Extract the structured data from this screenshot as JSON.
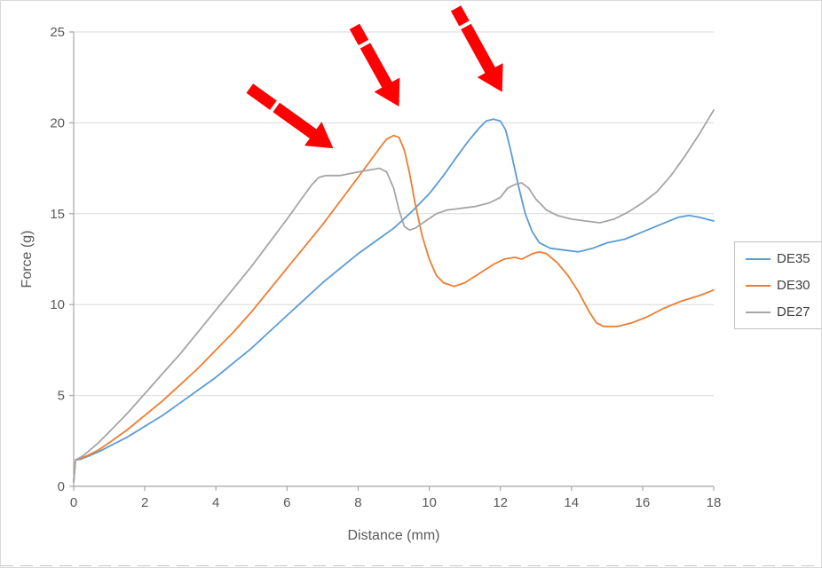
{
  "chart_data": {
    "type": "line",
    "title": "",
    "xlabel": "Distance (mm)",
    "ylabel": "Force (g)",
    "xlim": [
      0,
      18
    ],
    "ylim": [
      0,
      25
    ],
    "x_ticks": [
      0,
      2,
      4,
      6,
      8,
      10,
      12,
      14,
      16,
      18
    ],
    "y_ticks": [
      0,
      5,
      10,
      15,
      20,
      25
    ],
    "grid": "horizontal-only",
    "legend_position": "right-middle",
    "colors": {
      "gridline": "#d9d9d9",
      "axis": "#a6a6a6",
      "tick_label": "#595959",
      "axis_title": "#595959",
      "annotation_arrow": "#fe0000",
      "legend_border": "#bfbfbf",
      "legend_text": "#404040"
    },
    "series": [
      {
        "name": "DE35",
        "color": "#5b9bd5",
        "points": [
          [
            0,
            0.25
          ],
          [
            0.05,
            1.45
          ],
          [
            0.2,
            1.5
          ],
          [
            0.4,
            1.65
          ],
          [
            0.7,
            1.9
          ],
          [
            1,
            2.2
          ],
          [
            1.5,
            2.7
          ],
          [
            2,
            3.3
          ],
          [
            2.5,
            3.9
          ],
          [
            3,
            4.6
          ],
          [
            3.5,
            5.3
          ],
          [
            4,
            6.0
          ],
          [
            4.5,
            6.8
          ],
          [
            5,
            7.6
          ],
          [
            5.5,
            8.5
          ],
          [
            6,
            9.4
          ],
          [
            6.5,
            10.3
          ],
          [
            7,
            11.2
          ],
          [
            7.5,
            12.0
          ],
          [
            8,
            12.8
          ],
          [
            8.5,
            13.5
          ],
          [
            9,
            14.2
          ],
          [
            9.5,
            15.1
          ],
          [
            10,
            16.1
          ],
          [
            10.4,
            17.1
          ],
          [
            10.8,
            18.2
          ],
          [
            11.1,
            19.0
          ],
          [
            11.4,
            19.7
          ],
          [
            11.6,
            20.1
          ],
          [
            11.8,
            20.2
          ],
          [
            12.0,
            20.1
          ],
          [
            12.15,
            19.6
          ],
          [
            12.3,
            18.4
          ],
          [
            12.5,
            16.6
          ],
          [
            12.7,
            15.0
          ],
          [
            12.9,
            14.0
          ],
          [
            13.1,
            13.4
          ],
          [
            13.4,
            13.1
          ],
          [
            13.8,
            13.0
          ],
          [
            14.2,
            12.9
          ],
          [
            14.6,
            13.1
          ],
          [
            15,
            13.4
          ],
          [
            15.5,
            13.6
          ],
          [
            16,
            14.0
          ],
          [
            16.5,
            14.4
          ],
          [
            17,
            14.8
          ],
          [
            17.3,
            14.9
          ],
          [
            17.6,
            14.8
          ],
          [
            18,
            14.6
          ]
        ]
      },
      {
        "name": "DE30",
        "color": "#ed7d31",
        "points": [
          [
            0,
            0.25
          ],
          [
            0.05,
            1.45
          ],
          [
            0.2,
            1.55
          ],
          [
            0.4,
            1.7
          ],
          [
            0.7,
            2.0
          ],
          [
            1,
            2.4
          ],
          [
            1.5,
            3.1
          ],
          [
            2,
            3.9
          ],
          [
            2.5,
            4.7
          ],
          [
            3,
            5.6
          ],
          [
            3.5,
            6.5
          ],
          [
            4,
            7.5
          ],
          [
            4.5,
            8.5
          ],
          [
            5,
            9.6
          ],
          [
            5.5,
            10.8
          ],
          [
            6,
            12.0
          ],
          [
            6.5,
            13.2
          ],
          [
            7,
            14.4
          ],
          [
            7.5,
            15.7
          ],
          [
            8,
            17.0
          ],
          [
            8.3,
            17.8
          ],
          [
            8.6,
            18.6
          ],
          [
            8.8,
            19.1
          ],
          [
            9.0,
            19.3
          ],
          [
            9.15,
            19.2
          ],
          [
            9.3,
            18.5
          ],
          [
            9.45,
            17.2
          ],
          [
            9.6,
            15.6
          ],
          [
            9.8,
            13.8
          ],
          [
            10,
            12.5
          ],
          [
            10.2,
            11.6
          ],
          [
            10.4,
            11.2
          ],
          [
            10.7,
            11.0
          ],
          [
            11,
            11.2
          ],
          [
            11.4,
            11.7
          ],
          [
            11.8,
            12.2
          ],
          [
            12.1,
            12.5
          ],
          [
            12.4,
            12.6
          ],
          [
            12.6,
            12.5
          ],
          [
            12.9,
            12.8
          ],
          [
            13.1,
            12.9
          ],
          [
            13.3,
            12.8
          ],
          [
            13.6,
            12.3
          ],
          [
            13.9,
            11.6
          ],
          [
            14.2,
            10.7
          ],
          [
            14.5,
            9.6
          ],
          [
            14.7,
            9.0
          ],
          [
            14.9,
            8.8
          ],
          [
            15.3,
            8.8
          ],
          [
            15.7,
            9.0
          ],
          [
            16.1,
            9.3
          ],
          [
            16.6,
            9.8
          ],
          [
            17.1,
            10.2
          ],
          [
            17.6,
            10.5
          ],
          [
            18,
            10.8
          ]
        ]
      },
      {
        "name": "DE27",
        "color": "#a5a5a5",
        "points": [
          [
            0,
            0.25
          ],
          [
            0.05,
            1.45
          ],
          [
            0.2,
            1.6
          ],
          [
            0.4,
            1.9
          ],
          [
            0.7,
            2.4
          ],
          [
            1,
            3.0
          ],
          [
            1.5,
            4.0
          ],
          [
            2,
            5.1
          ],
          [
            2.5,
            6.2
          ],
          [
            3,
            7.3
          ],
          [
            3.5,
            8.5
          ],
          [
            4,
            9.7
          ],
          [
            4.5,
            10.9
          ],
          [
            5,
            12.1
          ],
          [
            5.5,
            13.4
          ],
          [
            6,
            14.7
          ],
          [
            6.4,
            15.8
          ],
          [
            6.7,
            16.6
          ],
          [
            6.9,
            17.0
          ],
          [
            7.1,
            17.1
          ],
          [
            7.5,
            17.1
          ],
          [
            8,
            17.3
          ],
          [
            8.3,
            17.4
          ],
          [
            8.6,
            17.5
          ],
          [
            8.8,
            17.3
          ],
          [
            9.0,
            16.4
          ],
          [
            9.15,
            15.2
          ],
          [
            9.3,
            14.3
          ],
          [
            9.45,
            14.1
          ],
          [
            9.6,
            14.2
          ],
          [
            9.9,
            14.6
          ],
          [
            10.2,
            15.0
          ],
          [
            10.5,
            15.2
          ],
          [
            10.9,
            15.3
          ],
          [
            11.3,
            15.4
          ],
          [
            11.7,
            15.6
          ],
          [
            12.0,
            15.9
          ],
          [
            12.2,
            16.4
          ],
          [
            12.4,
            16.6
          ],
          [
            12.6,
            16.7
          ],
          [
            12.8,
            16.4
          ],
          [
            13.0,
            15.8
          ],
          [
            13.3,
            15.2
          ],
          [
            13.6,
            14.9
          ],
          [
            14.0,
            14.7
          ],
          [
            14.4,
            14.6
          ],
          [
            14.8,
            14.5
          ],
          [
            15.2,
            14.7
          ],
          [
            15.6,
            15.1
          ],
          [
            16.0,
            15.6
          ],
          [
            16.4,
            16.2
          ],
          [
            16.8,
            17.1
          ],
          [
            17.2,
            18.2
          ],
          [
            17.6,
            19.4
          ],
          [
            18,
            20.7
          ]
        ]
      }
    ],
    "annotations": [
      {
        "type": "arrow",
        "color": "#fe0000",
        "from_xy": [
          4.95,
          21.9
        ],
        "to_xy": [
          7.3,
          18.6
        ],
        "notch_t": 0.3
      },
      {
        "type": "arrow",
        "color": "#fe0000",
        "from_xy": [
          7.9,
          25.3
        ],
        "to_xy": [
          9.15,
          20.9
        ],
        "notch_t": 0.22
      },
      {
        "type": "arrow",
        "color": "#fe0000",
        "from_xy": [
          10.75,
          26.3
        ],
        "to_xy": [
          12.05,
          21.7
        ],
        "notch_t": 0.2
      }
    ]
  }
}
